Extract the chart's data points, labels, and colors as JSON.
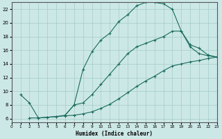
{
  "xlabel": "Humidex (Indice chaleur)",
  "xlim": [
    0,
    23
  ],
  "ylim": [
    5.5,
    23
  ],
  "yticks": [
    6,
    8,
    10,
    12,
    14,
    16,
    18,
    20,
    22
  ],
  "xticks": [
    0,
    1,
    2,
    3,
    4,
    5,
    6,
    7,
    8,
    9,
    10,
    11,
    12,
    13,
    14,
    15,
    16,
    17,
    18,
    19,
    20,
    21,
    22,
    23
  ],
  "bg_color": "#cce8e6",
  "grid_color": "#aacfcc",
  "line_color": "#1a6b5e",
  "line1_x": [
    1,
    2,
    3,
    4,
    5,
    6,
    7,
    8,
    9,
    10,
    11,
    12,
    13,
    14,
    15,
    16,
    17,
    18,
    19,
    20,
    21,
    22,
    23
  ],
  "line1_y": [
    9.5,
    8.3,
    6.1,
    6.2,
    6.3,
    6.5,
    8.0,
    13.2,
    15.8,
    17.5,
    18.5,
    20.2,
    21.2,
    22.5,
    23.0,
    23.0,
    22.8,
    22.0,
    18.8,
    16.5,
    15.5,
    15.2,
    15.0
  ],
  "line2_x": [
    2,
    3,
    4,
    5,
    6,
    7,
    8,
    9,
    10,
    11,
    12,
    13,
    14,
    15,
    16,
    17,
    18,
    19,
    20,
    21,
    22,
    23
  ],
  "line2_y": [
    6.1,
    6.1,
    6.2,
    6.3,
    6.4,
    6.5,
    6.7,
    7.0,
    7.5,
    8.1,
    8.9,
    9.8,
    10.7,
    11.5,
    12.2,
    13.0,
    13.7,
    14.0,
    14.3,
    14.5,
    14.8,
    15.0
  ],
  "line3_x": [
    6,
    7,
    8,
    9,
    10,
    11,
    12,
    13,
    14,
    15,
    16,
    17,
    18,
    19,
    20,
    21,
    22,
    23
  ],
  "line3_y": [
    6.5,
    8.0,
    8.3,
    9.5,
    11.0,
    12.5,
    14.0,
    15.5,
    16.5,
    17.0,
    17.5,
    18.0,
    18.8,
    18.8,
    16.8,
    16.3,
    15.3,
    15.0
  ]
}
